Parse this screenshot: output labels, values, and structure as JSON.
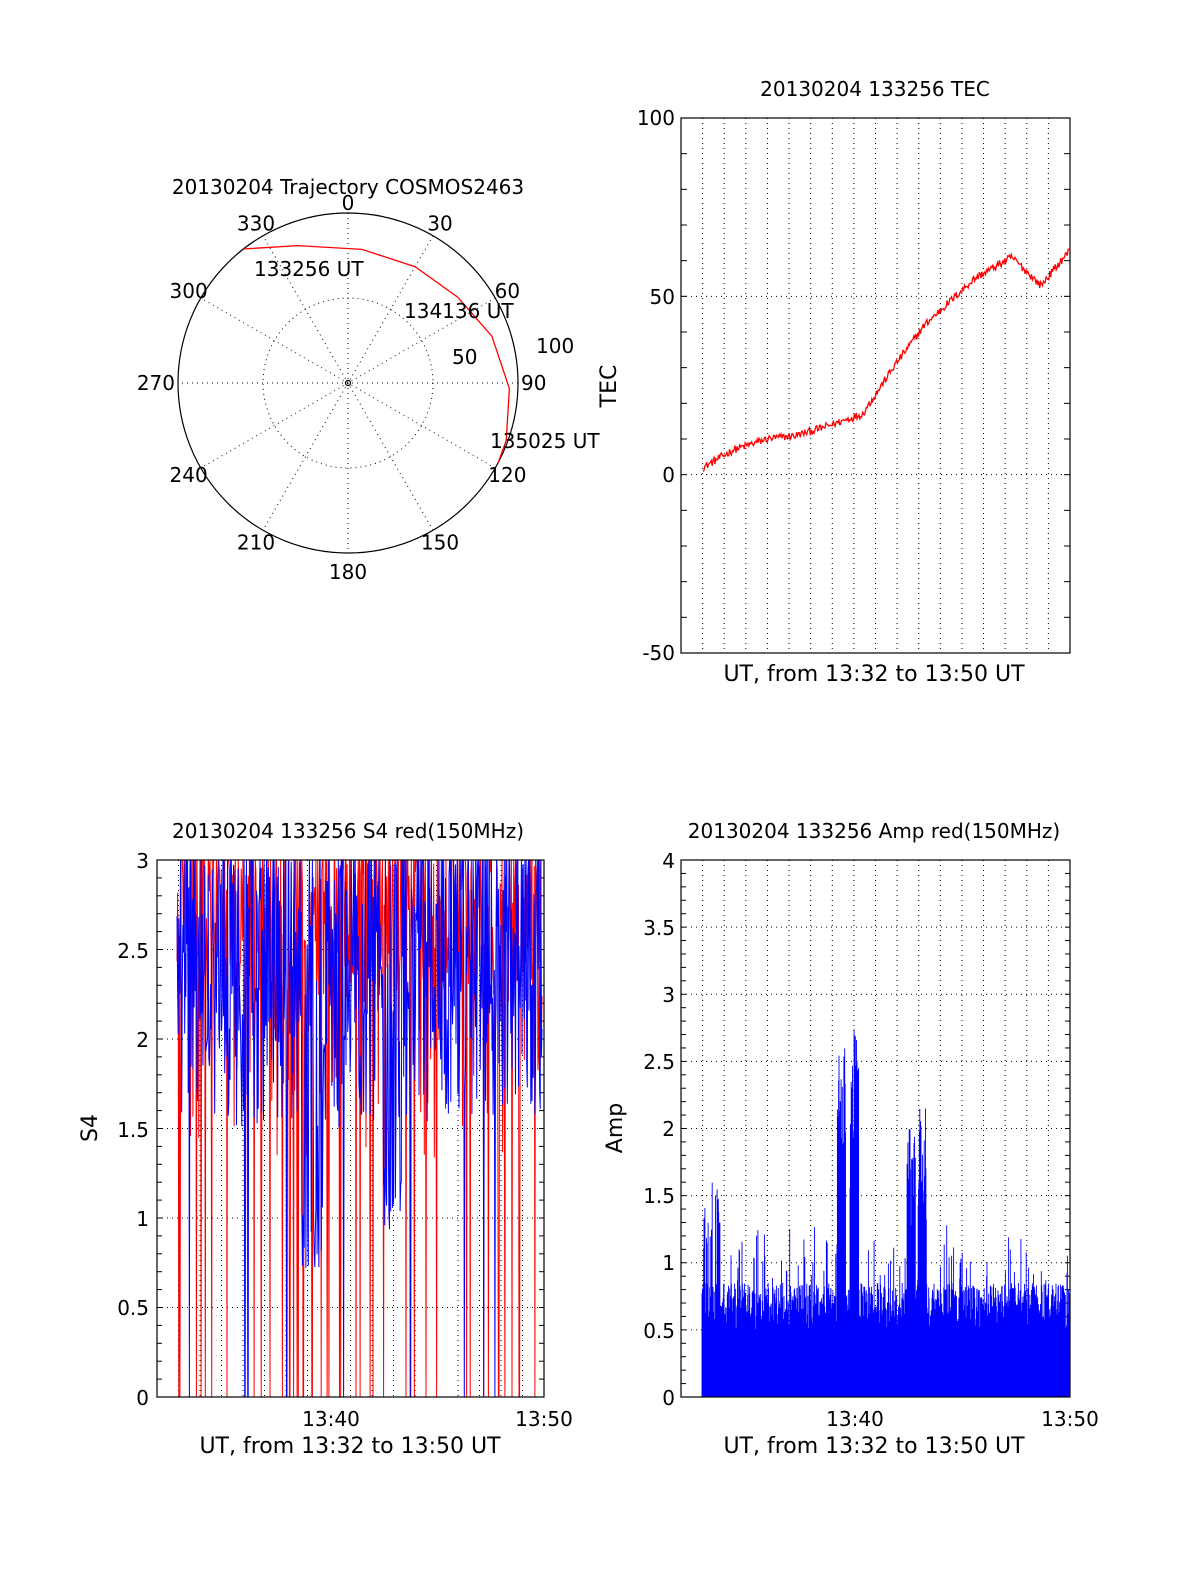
{
  "colors": {
    "red": "#ff0000",
    "blue": "#0000ff",
    "grid": "#000000"
  },
  "chart_data": [
    {
      "type": "polar",
      "title": "20130204 Trajectory COSMOS2463",
      "angle_labels": [
        "0",
        "30",
        "60",
        "90",
        "120",
        "150",
        "180",
        "210",
        "240",
        "270",
        "300",
        "330"
      ],
      "radius_labels": [
        "50",
        "100"
      ],
      "trajectory": {
        "points": [
          {
            "az": 322,
            "zenith": 100
          },
          {
            "az": 340,
            "zenith": 86
          },
          {
            "az": 6,
            "zenith": 79
          },
          {
            "az": 30,
            "zenith": 79
          },
          {
            "az": 52,
            "zenith": 82
          },
          {
            "az": 72,
            "zenith": 89
          },
          {
            "az": 92,
            "zenith": 95
          },
          {
            "az": 110,
            "zenith": 99
          },
          {
            "az": 118,
            "zenith": 100
          }
        ],
        "labels": [
          "133256 UT",
          "134136 UT",
          "135025 UT"
        ]
      }
    },
    {
      "type": "line",
      "title": "20130204 133256 TEC",
      "ylabel": "TEC",
      "xlabel": "UT, from 13:32 to 13:50 UT",
      "ylim": [
        -50,
        100
      ],
      "yticks": [
        "-50",
        "0",
        "50",
        "100"
      ],
      "x_minutes": [
        13.53,
        18.0
      ],
      "series": [
        {
          "color": "red",
          "x": [
            13.53,
            13.9,
            14.3,
            14.65,
            14.95,
            15.45,
            15.85,
            16.2,
            16.8,
            17.25,
            17.6,
            17.95
          ],
          "y": [
            2,
            7,
            10,
            11,
            13,
            17,
            31,
            42,
            55,
            61,
            53,
            63
          ]
        }
      ]
    },
    {
      "type": "line",
      "title": "20130204 133256 S4 red(150MHz)",
      "ylabel": "S4",
      "xlabel": "UT, from 13:32 to 13:50 UT",
      "ylim": [
        0,
        3
      ],
      "yticks": [
        "0",
        "0.5",
        "1",
        "1.5",
        "2",
        "2.5",
        "3"
      ],
      "xticks": [
        "13:40",
        "13:50"
      ],
      "series": [
        {
          "name": "",
          "color": "red"
        },
        {
          "name": "",
          "color": "blue"
        }
      ]
    },
    {
      "type": "line",
      "title": "20130204 133256 Amp red(150MHz)",
      "ylabel": "Amp",
      "xlabel": "UT, from 13:32 to 13:50 UT",
      "ylim": [
        0,
        4
      ],
      "yticks": [
        "0",
        "0.5",
        "1",
        "1.5",
        "2",
        "2.5",
        "3",
        "3.5",
        "4"
      ],
      "xticks": [
        "13:40",
        "13:50"
      ],
      "series": [
        {
          "name": "",
          "color": "blue"
        }
      ],
      "peaks": [
        {
          "t": "13:39:20",
          "amp": 2.65
        },
        {
          "t": "13:39:55",
          "amp": 2.8
        },
        {
          "t": "13:42:30",
          "amp": 2.0
        },
        {
          "t": "13:43:05",
          "amp": 2.35
        }
      ]
    }
  ]
}
